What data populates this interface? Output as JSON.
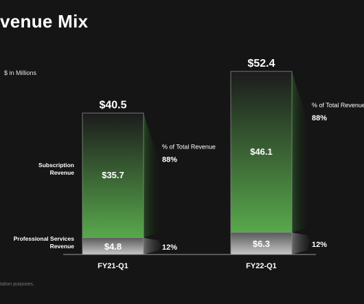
{
  "title": "venue Mix",
  "units_label": "$ in Millions",
  "footnote": "tation purposes.",
  "chart_data": {
    "type": "bar",
    "stacked": true,
    "categories": [
      "FY21-Q1",
      "FY22-Q1"
    ],
    "series": [
      {
        "name": "Professional Services Revenue",
        "values": [
          4.8,
          6.3
        ],
        "labels": [
          "$4.8",
          "$6.3"
        ],
        "percent_labels": [
          "12%",
          "12%"
        ],
        "color": "#a8a8a8"
      },
      {
        "name": "Subscription Revenue",
        "values": [
          35.7,
          46.1
        ],
        "labels": [
          "$35.7",
          "$46.1"
        ],
        "percent_labels": [
          "88%",
          "88%"
        ],
        "color": "#4f9a45"
      }
    ],
    "totals": [
      40.5,
      52.4
    ],
    "total_labels": [
      "$40.5",
      "$52.4"
    ],
    "series_axis_labels": [
      {
        "lines": [
          "Subscription",
          "Revenue"
        ]
      },
      {
        "lines": [
          "Professional Services",
          "Revenue"
        ]
      }
    ],
    "percent_header": "% of Total Revenue",
    "ylim": [
      0,
      52.4
    ],
    "grid": false,
    "legend": "none"
  },
  "colors": {
    "background": "#151515",
    "subscription_top": "#1c1c1c",
    "subscription_bottom": "#58a84c",
    "services_top": "#5a5a5a",
    "services_bottom": "#c6c6c6",
    "bar_border": "#8a8a8a"
  }
}
